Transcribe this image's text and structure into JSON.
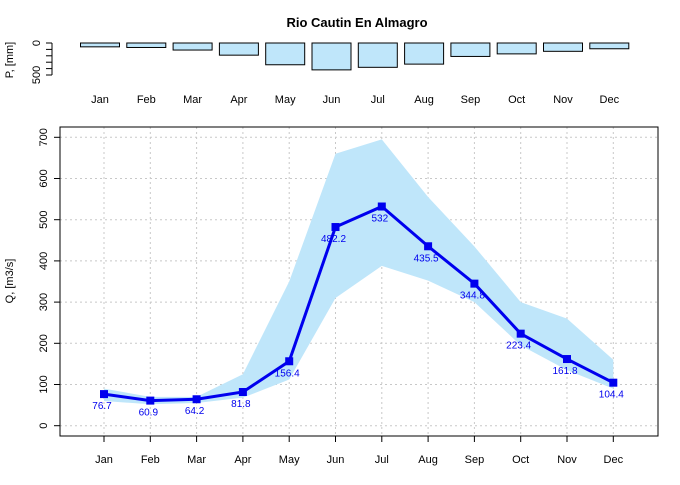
{
  "chart_data": [
    {
      "type": "bar",
      "title": "Rio Cautin En Almagro",
      "ylabel": "P, [mm]",
      "ylim": [
        0,
        500
      ],
      "yticks": [
        0,
        500
      ],
      "inverted": true,
      "categories": [
        "Jan",
        "Feb",
        "Mar",
        "Apr",
        "May",
        "Jun",
        "Jul",
        "Aug",
        "Sep",
        "Oct",
        "Nov",
        "Dec"
      ],
      "values": [
        60,
        70,
        110,
        190,
        340,
        420,
        380,
        330,
        210,
        170,
        130,
        90
      ],
      "colors": {
        "bar_fill": "#bfe6fa",
        "bar_stroke": "#000000"
      }
    },
    {
      "type": "line",
      "ylabel": "Q, [m3/s]",
      "ylim": [
        -25,
        725
      ],
      "yticks": [
        0,
        100,
        200,
        300,
        400,
        500,
        600,
        700
      ],
      "grid": true,
      "categories": [
        "Jan",
        "Feb",
        "Mar",
        "Apr",
        "May",
        "Jun",
        "Jul",
        "Aug",
        "Sep",
        "Oct",
        "Nov",
        "Dec"
      ],
      "series": [
        {
          "values": [
            76.7,
            60.9,
            64.2,
            81.8,
            156.4,
            482.2,
            532,
            435.5,
            344.8,
            223.4,
            161.8,
            104.4
          ],
          "labels": [
            "76.7",
            "60.9",
            "64.2",
            "81.8",
            "156.4",
            "482.2",
            "532",
            "435.5",
            "344.8",
            "223.4",
            "161.8",
            "104.4"
          ]
        }
      ],
      "band": {
        "upper": [
          90,
          70,
          70,
          125,
          350,
          660,
          695,
          555,
          435,
          300,
          260,
          160
        ],
        "lower": [
          60,
          52,
          55,
          68,
          112,
          310,
          388,
          352,
          300,
          195,
          135,
          90
        ]
      },
      "colors": {
        "line": "#0000ee",
        "band": "#bfe6fa",
        "label": "#0000ee",
        "grid": "#c8c8c8"
      }
    }
  ]
}
